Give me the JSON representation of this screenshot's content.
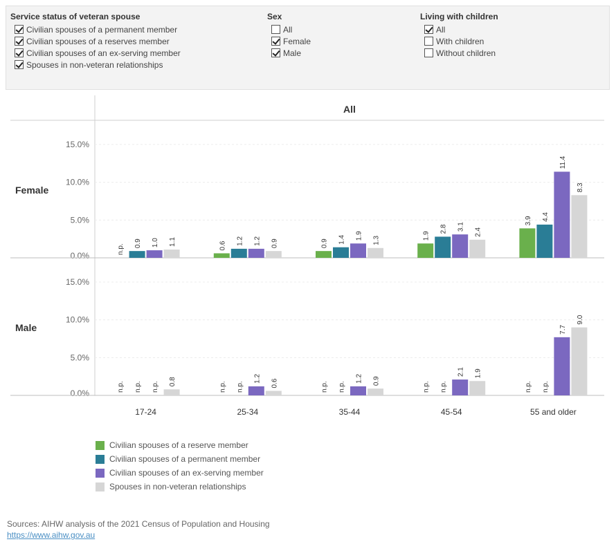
{
  "filters": {
    "service_status": {
      "title": "Service status of veteran spouse",
      "options": [
        {
          "label": "Civilian spouses of a permanent member",
          "checked": true
        },
        {
          "label": "Civilian spouses of a reserves member",
          "checked": true
        },
        {
          "label": "Civilian spouses of an ex-serving member",
          "checked": true
        },
        {
          "label": "Spouses in non-veteran relationships",
          "checked": true
        }
      ]
    },
    "sex": {
      "title": "Sex",
      "options": [
        {
          "label": "All",
          "checked": false
        },
        {
          "label": "Female",
          "checked": true
        },
        {
          "label": "Male",
          "checked": true
        }
      ]
    },
    "children": {
      "title": "Living with children",
      "options": [
        {
          "label": "All",
          "checked": true
        },
        {
          "label": "With children",
          "checked": false
        },
        {
          "label": "Without children",
          "checked": false
        }
      ]
    }
  },
  "chart_data": {
    "type": "bar",
    "column_header": "All",
    "categories": [
      "17-24",
      "25-34",
      "35-44",
      "45-54",
      "55 and older"
    ],
    "yticks": [
      "0.0%",
      "5.0%",
      "10.0%",
      "15.0%"
    ],
    "ylim": [
      0,
      17
    ],
    "grid": true,
    "missing_label": "n.p.",
    "series": [
      {
        "name": "Civilian spouses of a reserve member",
        "color": "#6ab04c"
      },
      {
        "name": "Civilian spouses of a permanent member",
        "color": "#2a7d96"
      },
      {
        "name": "Civilian spouses of an ex-serving member",
        "color": "#7b68c0"
      },
      {
        "name": "Spouses in non-veteran relationships",
        "color": "#d6d6d6"
      }
    ],
    "panels": [
      {
        "label": "Female",
        "values": [
          [
            null,
            0.6,
            0.9,
            1.9,
            3.9
          ],
          [
            0.9,
            1.2,
            1.4,
            2.8,
            4.4
          ],
          [
            1.0,
            1.2,
            1.9,
            3.1,
            11.4
          ],
          [
            1.1,
            0.9,
            1.3,
            2.4,
            8.3
          ]
        ]
      },
      {
        "label": "Male",
        "values": [
          [
            null,
            null,
            null,
            null,
            null
          ],
          [
            null,
            null,
            null,
            null,
            null
          ],
          [
            null,
            1.2,
            1.2,
            2.1,
            7.7
          ],
          [
            0.8,
            0.6,
            0.9,
            1.9,
            9.0
          ]
        ]
      }
    ],
    "legend_position": "bottom-left"
  },
  "sources": {
    "text": "Sources: AIHW analysis of the 2021 Census of Population and Housing",
    "link": "https://www.aihw.gov.au"
  }
}
